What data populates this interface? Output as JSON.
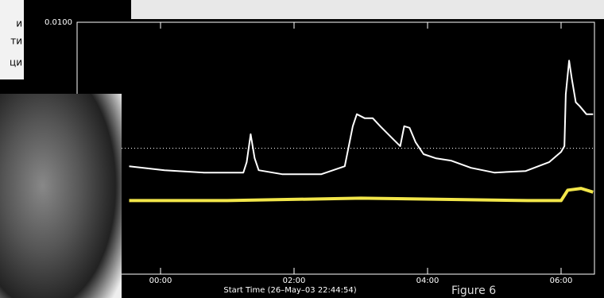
{
  "overlay_text": [
    "и",
    "ти",
    "ци"
  ],
  "chart_data": {
    "type": "line",
    "log_y": true,
    "xlabel": "Start Time (26–May–03 22:44:54)",
    "caption": "Figure 6",
    "xlim": [
      -1.25,
      6.5
    ],
    "ylim": [
      1e-08,
      0.01
    ],
    "xticks": [
      {
        "value": 0,
        "label": "00:00"
      },
      {
        "value": 2,
        "label": "02:00"
      },
      {
        "value": 4,
        "label": "04:00"
      },
      {
        "value": 6,
        "label": "06:00"
      }
    ],
    "yticks": [
      {
        "value": 0.01,
        "label": "0.0100"
      }
    ],
    "reference_line": 1e-05,
    "series": [
      {
        "color": "#ffffff",
        "x": [
          -0.47,
          0.06,
          0.65,
          1.24,
          1.29,
          1.35,
          1.41,
          1.47,
          1.82,
          2.41,
          2.76,
          2.88,
          2.94,
          3.06,
          3.18,
          3.29,
          3.47,
          3.59,
          3.65,
          3.73,
          3.82,
          3.94,
          4.12,
          4.35,
          4.65,
          5.0,
          5.47,
          5.82,
          6.0,
          6.05,
          6.07,
          6.12,
          6.16,
          6.22,
          6.28,
          6.38,
          6.48
        ],
        "values": [
          3.72e-06,
          2.99e-06,
          2.62e-06,
          2.62e-06,
          4.64e-06,
          2.15e-05,
          5.78e-06,
          2.99e-06,
          2.41e-06,
          2.41e-06,
          3.72e-06,
          3.34e-05,
          6.45e-05,
          5.18e-05,
          5.18e-05,
          3.34e-05,
          1.73e-05,
          1.12e-05,
          3.34e-05,
          3.06e-05,
          1.39e-05,
          7.2e-06,
          5.78e-06,
          5.07e-06,
          3.41e-06,
          2.62e-06,
          2.86e-06,
          4.64e-06,
          8.2e-06,
          1.12e-05,
          0.000193,
          0.00122,
          0.000464,
          0.000124,
          0.0001,
          6.45e-05,
          6.45e-05
        ]
      },
      {
        "color": "#f2e64a",
        "x": [
          -0.47,
          1.0,
          3.0,
          5.5,
          6.0,
          6.1,
          6.3,
          6.48
        ],
        "values": [
          5.65e-07,
          5.65e-07,
          6.45e-07,
          5.65e-07,
          5.65e-07,
          1e-06,
          1.1e-06,
          9e-07
        ]
      }
    ]
  }
}
